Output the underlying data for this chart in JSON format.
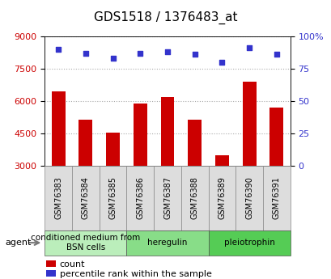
{
  "title": "GDS1518 / 1376483_at",
  "samples": [
    "GSM76383",
    "GSM76384",
    "GSM76385",
    "GSM76386",
    "GSM76387",
    "GSM76388",
    "GSM76389",
    "GSM76390",
    "GSM76391"
  ],
  "counts": [
    6450,
    5150,
    4550,
    5900,
    6200,
    5150,
    3500,
    6900,
    5700
  ],
  "percentiles": [
    90,
    87,
    83,
    87,
    88,
    86,
    80,
    91,
    86
  ],
  "ylim_left": [
    3000,
    9000
  ],
  "ylim_right": [
    0,
    100
  ],
  "yticks_left": [
    3000,
    4500,
    6000,
    7500,
    9000
  ],
  "yticks_right": [
    0,
    25,
    50,
    75,
    100
  ],
  "bar_color": "#cc0000",
  "dot_color": "#3333cc",
  "groups": [
    {
      "label": "conditioned medium from\nBSN cells",
      "start": 0,
      "end": 3,
      "color": "#bbeebb"
    },
    {
      "label": "heregulin",
      "start": 3,
      "end": 6,
      "color": "#88dd88"
    },
    {
      "label": "pleiotrophin",
      "start": 6,
      "end": 9,
      "color": "#55cc55"
    }
  ],
  "agent_label": "agent",
  "legend_count_label": "count",
  "legend_pct_label": "percentile rank within the sample",
  "grid_color": "#aaaaaa",
  "sample_bg_color": "#dddddd",
  "plot_bg": "#ffffff",
  "bar_bottom": 3000,
  "title_fontsize": 11,
  "tick_fontsize": 8,
  "sample_fontsize": 7,
  "group_fontsize": 7.5,
  "legend_fontsize": 8
}
